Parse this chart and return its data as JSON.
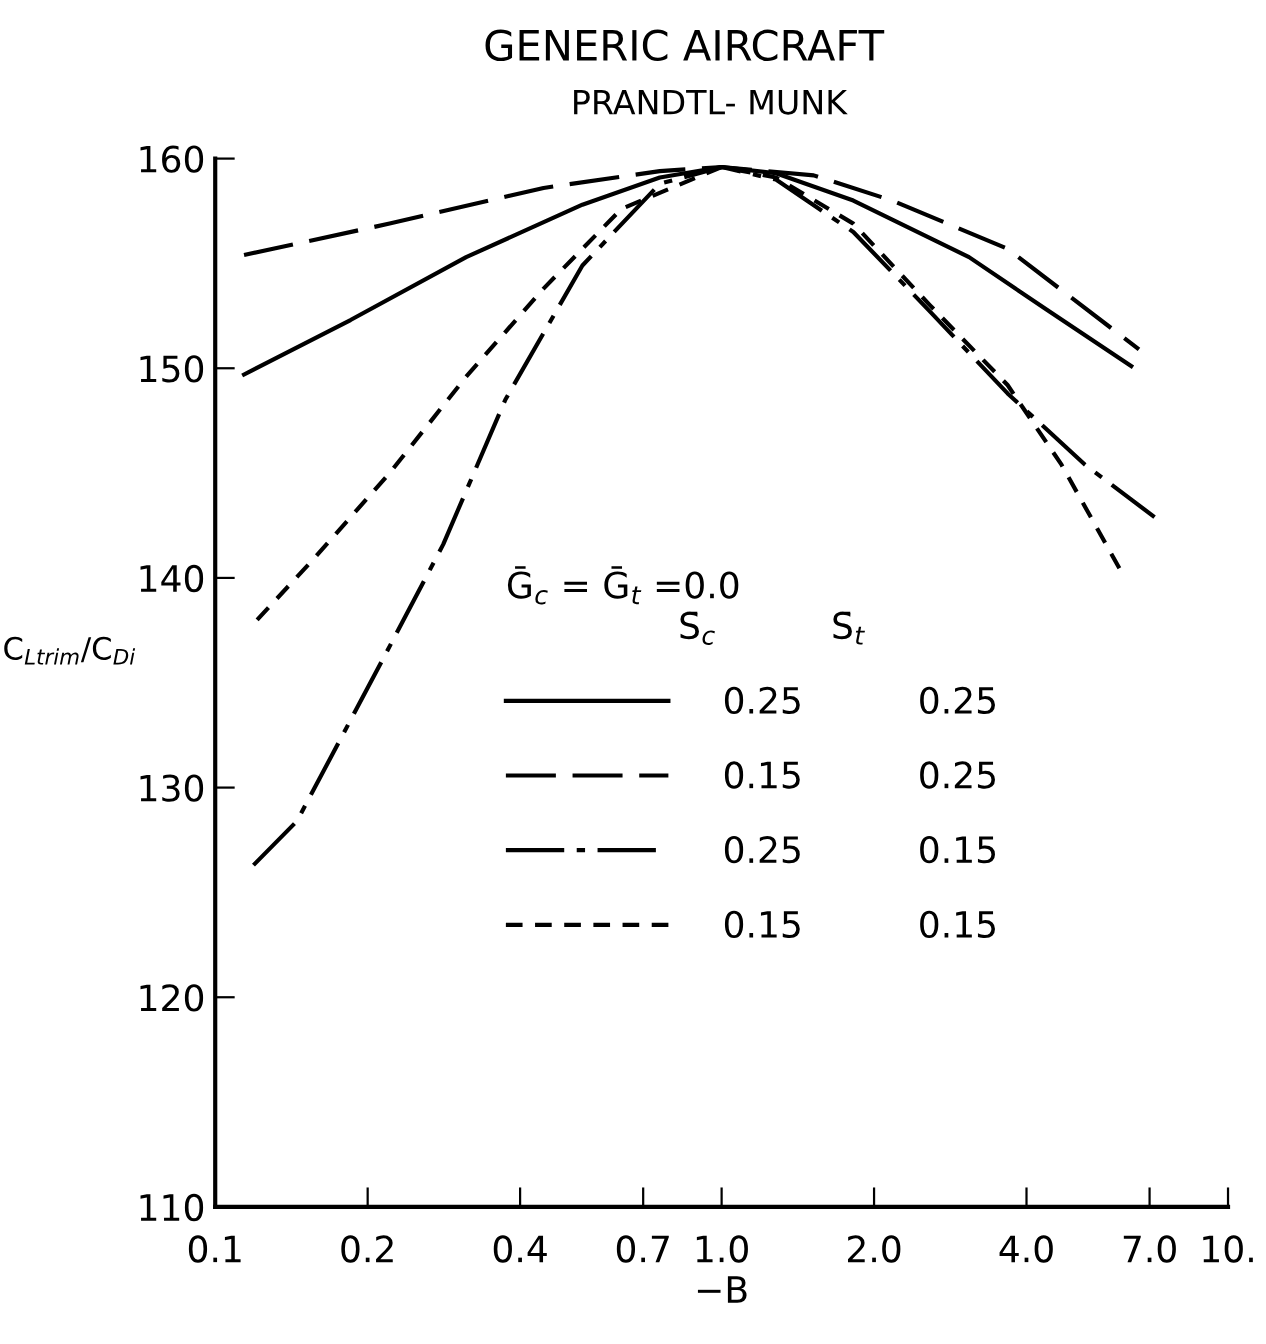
{
  "chart_data": {
    "type": "line",
    "title": "GENERIC AIRCRAFT",
    "subtitle": "PRANDTL- MUNK",
    "xlabel": "−B",
    "ylabel": "C$_{Ltrim}$/C$_{Di}$",
    "legend_title": "Ḡ$_{c}$ = Ḡ$_{t}$ =0.0\n               S̄$_{c}$          S̄$_{t}$",
    "log": "x",
    "grid": false,
    "legend": "center",
    "marker": "none",
    "xlim": [
      0.1,
      10
    ],
    "ylim": [
      110,
      160
    ],
    "xticks": [
      0.1,
      0.2,
      0.4,
      0.7,
      {
        "value": 1,
        "label": "1.0"
      },
      {
        "value": 2,
        "label": "2.0"
      },
      {
        "value": 4,
        "label": "4.0"
      },
      {
        "value": 7,
        "label": "7.0"
      },
      {
        "value": 10,
        "label": "10."
      }
    ],
    "yticks": [
      110,
      120,
      130,
      140,
      150,
      160
    ],
    "series": [
      {
        "name": "0.25          0.25",
        "color": "#000000",
        "line_style": "solid",
        "x": [
          0.114,
          0.185,
          0.313,
          0.531,
          0.755,
          1.0,
          1.28,
          1.82,
          3.08,
          4.38,
          6.44
        ],
        "values": [
          149.7,
          152.3,
          155.3,
          157.8,
          159.1,
          159.6,
          159.3,
          158.0,
          155.3,
          152.8,
          150.1
        ]
      },
      {
        "name": "0.15          0.25",
        "color": "#000000",
        "line_style": "longdash",
        "x": [
          0.114,
          0.221,
          0.445,
          0.755,
          1.0,
          1.52,
          2.17,
          3.67,
          6.67
        ],
        "values": [
          155.4,
          156.9,
          158.6,
          159.4,
          159.6,
          159.2,
          158.0,
          155.7,
          150.9
        ]
      },
      {
        "name": "0.25          0.15",
        "color": "#000000",
        "line_style": "dashdot",
        "x": [
          0.119,
          0.145,
          0.213,
          0.282,
          0.374,
          0.531,
          0.755,
          1.0,
          1.28,
          1.82,
          2.58,
          3.67,
          5.22,
          7.16
        ],
        "values": [
          126.3,
          128.4,
          136.0,
          141.6,
          148.5,
          154.9,
          158.8,
          159.6,
          159.0,
          156.5,
          152.7,
          148.8,
          145.4,
          142.9
        ]
      },
      {
        "name": "0.15          0.15",
        "color": "#000000",
        "line_style": "dashed",
        "x": [
          0.121,
          0.155,
          0.221,
          0.313,
          0.445,
          0.634,
          1.0,
          1.28,
          1.82,
          2.58,
          3.67,
          4.69,
          6.22
        ],
        "values": [
          138.0,
          140.8,
          145.0,
          149.6,
          153.8,
          157.6,
          159.6,
          159.1,
          156.9,
          153.0,
          149.2,
          145.4,
          140.1
        ]
      }
    ]
  }
}
